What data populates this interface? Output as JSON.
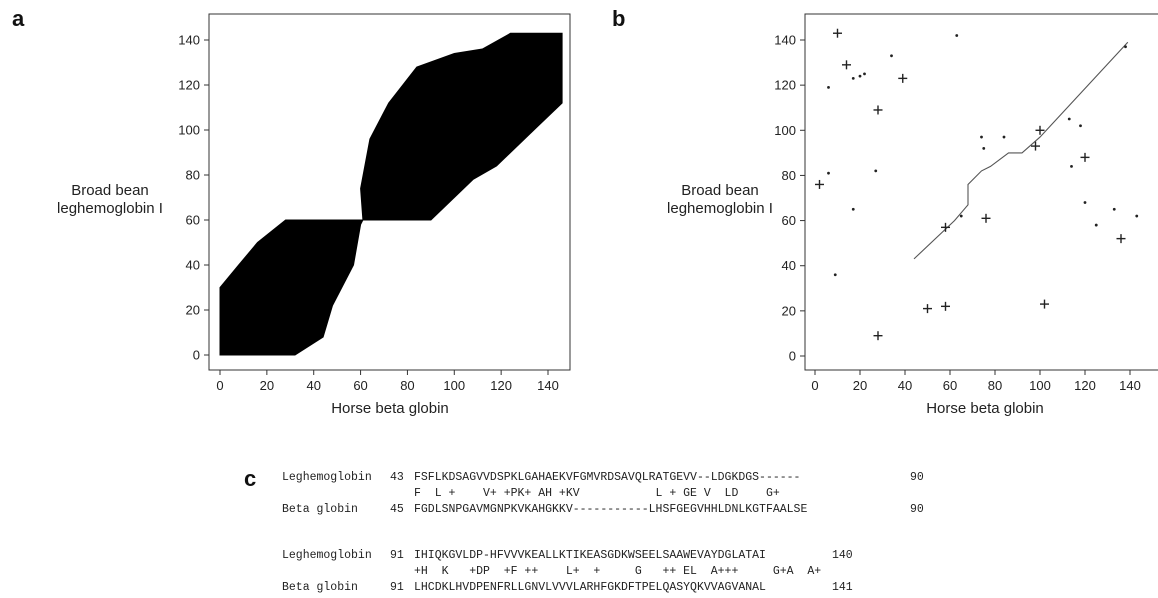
{
  "panels": {
    "a": {
      "letter": "a",
      "xlabel": "Horse beta globin",
      "ylabel_line1": "Broad bean",
      "ylabel_line2": "leghemoglobin I"
    },
    "b": {
      "letter": "b",
      "xlabel": "Horse beta globin",
      "ylabel_line1": "Broad bean",
      "ylabel_line2": "leghemoglobin I"
    },
    "c": {
      "letter": "c"
    }
  },
  "chart_data": [
    {
      "panel": "a",
      "type": "heatmap",
      "xlabel": "Horse beta globin",
      "ylabel": "Broad bean leghemoglobin I",
      "xlim": [
        0,
        146
      ],
      "ylim": [
        0,
        143
      ],
      "xticks": [
        0,
        20,
        40,
        60,
        80,
        100,
        120,
        140
      ],
      "yticks": [
        0,
        20,
        40,
        60,
        80,
        100,
        120,
        140
      ],
      "regions": [
        {
          "name": "lower block",
          "polygon": [
            [
              0,
              0
            ],
            [
              32,
              0
            ],
            [
              44,
              8
            ],
            [
              48,
              22
            ],
            [
              57,
              40
            ],
            [
              60,
              58
            ],
            [
              61,
              60
            ],
            [
              28,
              60
            ],
            [
              16,
              50
            ],
            [
              8,
              40
            ],
            [
              0,
              30
            ]
          ]
        },
        {
          "name": "upper block",
          "polygon": [
            [
              61,
              60
            ],
            [
              90,
              60
            ],
            [
              100,
              70
            ],
            [
              108,
              78
            ],
            [
              118,
              84
            ],
            [
              134,
              100
            ],
            [
              146,
              112
            ],
            [
              146,
              143
            ],
            [
              124,
              143
            ],
            [
              112,
              136
            ],
            [
              100,
              134
            ],
            [
              84,
              128
            ],
            [
              72,
              112
            ],
            [
              64,
              96
            ],
            [
              60,
              74
            ]
          ]
        }
      ]
    },
    {
      "panel": "b",
      "type": "scatter",
      "xlabel": "Horse beta globin",
      "ylabel": "Broad bean leghemoglobin I",
      "xlim": [
        0,
        146
      ],
      "ylim": [
        0,
        143
      ],
      "xticks": [
        0,
        20,
        40,
        60,
        80,
        100,
        120,
        140
      ],
      "yticks": [
        0,
        20,
        40,
        60,
        80,
        100,
        120,
        140
      ],
      "path": [
        [
          44,
          43
        ],
        [
          62,
          60
        ],
        [
          68,
          67
        ],
        [
          68,
          76
        ],
        [
          74,
          82
        ],
        [
          78,
          84
        ],
        [
          86,
          90
        ],
        [
          92,
          90
        ],
        [
          100,
          97
        ],
        [
          139,
          139
        ]
      ],
      "plus_points": [
        [
          2,
          76
        ],
        [
          10,
          143
        ],
        [
          14,
          129
        ],
        [
          28,
          109
        ],
        [
          39,
          123
        ],
        [
          28,
          9
        ],
        [
          50,
          21
        ],
        [
          58,
          22
        ],
        [
          58,
          57
        ],
        [
          76,
          61
        ],
        [
          98,
          93
        ],
        [
          100,
          100
        ],
        [
          102,
          23
        ],
        [
          120,
          88
        ],
        [
          136,
          52
        ]
      ],
      "dot_points": [
        [
          6,
          81
        ],
        [
          6,
          119
        ],
        [
          9,
          36
        ],
        [
          17,
          65
        ],
        [
          17,
          123
        ],
        [
          20,
          124
        ],
        [
          22,
          125
        ],
        [
          27,
          82
        ],
        [
          34,
          133
        ],
        [
          63,
          142
        ],
        [
          65,
          62
        ],
        [
          74,
          97
        ],
        [
          75,
          92
        ],
        [
          84,
          97
        ],
        [
          113,
          105
        ],
        [
          114,
          84
        ],
        [
          118,
          102
        ],
        [
          120,
          68
        ],
        [
          125,
          58
        ],
        [
          133,
          65
        ],
        [
          143,
          62
        ],
        [
          138,
          137
        ]
      ]
    }
  ],
  "alignment": {
    "block1": {
      "top_name": "Leghemoglobin",
      "top_start": "43",
      "top_seq": "FSFLKDSAGVVDSPKLGAHAEKVFGMVRDSAVQLRATGEVV--LDGKDGS------",
      "top_end": "90",
      "match": "F  L +    V+ +PK+ AH +KV           L + GE V  LD    G+",
      "bottom_name": "Beta globin",
      "bottom_start": "45",
      "bottom_seq": "FGDLSNPGAVMGNPKVKAHGKKV-----------LHSFGEGVHHLDNLKGTFAALSE",
      "bottom_end": "90"
    },
    "block2": {
      "top_name": "Leghemoglobin",
      "top_start": "91",
      "top_seq": "IHIQKGVLDP-HFVVVKEALLKTIKEASGDKWSEELSAAWEVAYDGLATAI",
      "top_end": "140",
      "match": "+H  K   +DP  +F ++    L+  +     G   ++ EL  A+++     G+A  A+",
      "bottom_name": "Beta globin",
      "bottom_start": "91",
      "bottom_seq": "LHCDKLHVDPENFRLLGNVLVVVLARHFGKDFTPELQASYQKVVAGVANAL",
      "bottom_end": "141"
    }
  }
}
